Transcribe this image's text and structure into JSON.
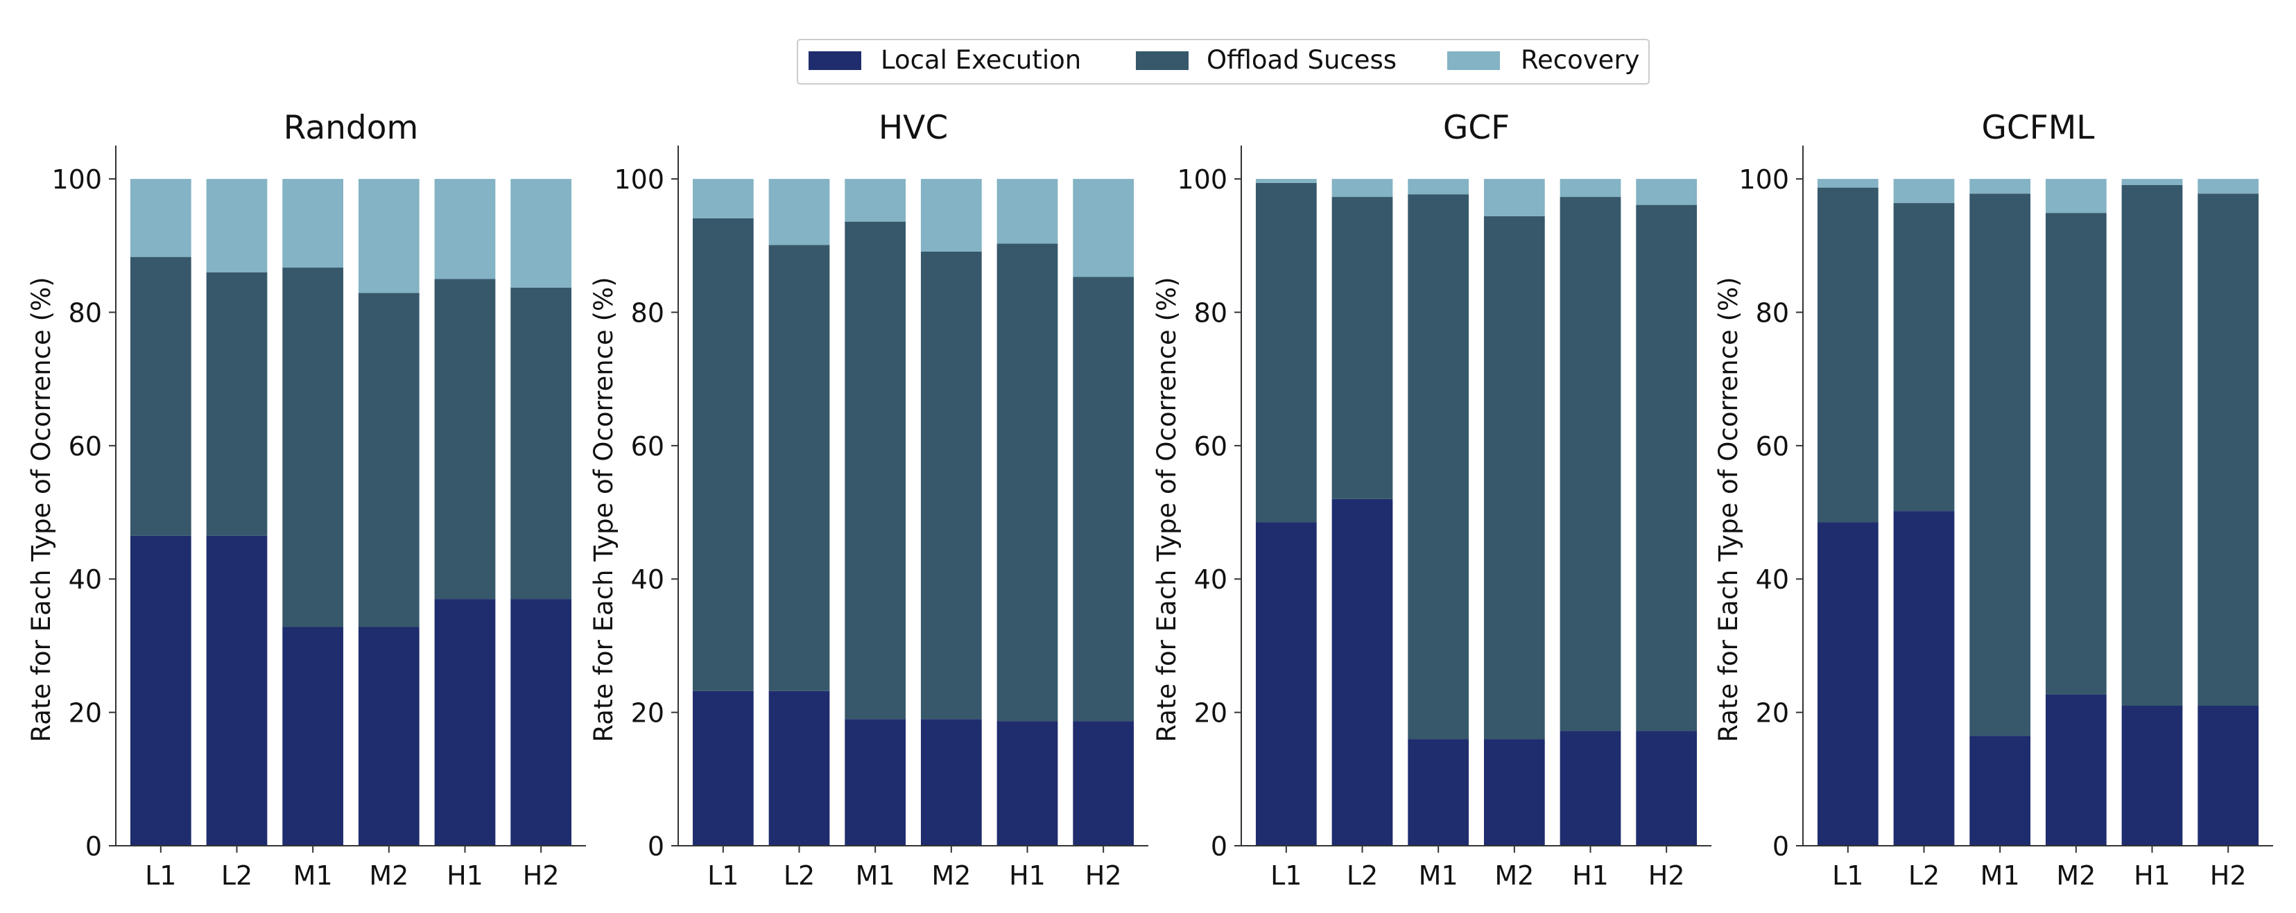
{
  "legend": {
    "placement": "top-center",
    "items": [
      {
        "label": "Local Execution",
        "color": "#1f2d6e"
      },
      {
        "label": "Offload Sucess",
        "color": "#37586b"
      },
      {
        "label": "Recovery",
        "color": "#83b3c4"
      }
    ]
  },
  "chart_data": [
    {
      "type": "bar",
      "stacked": true,
      "title": "Random",
      "ylabel": "Rate for Each Type of Ocorrence (%)",
      "ylim": [
        0,
        105
      ],
      "yticks": [
        0,
        20,
        40,
        60,
        80,
        100
      ],
      "categories": [
        "L1",
        "L2",
        "M1",
        "M2",
        "H1",
        "H2"
      ],
      "series": [
        {
          "name": "Local Execution",
          "values": [
            46.5,
            46.5,
            32.8,
            32.8,
            37.0,
            37.0
          ]
        },
        {
          "name": "Offload Sucess",
          "values": [
            41.8,
            39.5,
            53.9,
            50.1,
            48.0,
            46.7
          ]
        },
        {
          "name": "Recovery",
          "values": [
            11.7,
            14.0,
            13.3,
            17.1,
            15.0,
            16.3
          ]
        }
      ]
    },
    {
      "type": "bar",
      "stacked": true,
      "title": "HVC",
      "ylabel": "Rate for Each Type of Ocorrence (%)",
      "ylim": [
        0,
        105
      ],
      "yticks": [
        0,
        20,
        40,
        60,
        80,
        100
      ],
      "categories": [
        "L1",
        "L2",
        "M1",
        "M2",
        "H1",
        "H2"
      ],
      "series": [
        {
          "name": "Local Execution",
          "values": [
            23.2,
            23.2,
            19.0,
            19.0,
            18.7,
            18.7
          ]
        },
        {
          "name": "Offload Sucess",
          "values": [
            70.9,
            66.9,
            74.6,
            70.1,
            71.6,
            66.6
          ]
        },
        {
          "name": "Recovery",
          "values": [
            5.9,
            9.9,
            6.4,
            10.9,
            9.7,
            14.7
          ]
        }
      ]
    },
    {
      "type": "bar",
      "stacked": true,
      "title": "GCF",
      "ylabel": "Rate for Each Type of Ocorrence (%)",
      "ylim": [
        0,
        105
      ],
      "yticks": [
        0,
        20,
        40,
        60,
        80,
        100
      ],
      "categories": [
        "L1",
        "L2",
        "M1",
        "M2",
        "H1",
        "H2"
      ],
      "series": [
        {
          "name": "Local Execution",
          "values": [
            48.5,
            52.0,
            16.0,
            16.0,
            17.2,
            17.2
          ]
        },
        {
          "name": "Offload Sucess",
          "values": [
            50.9,
            45.3,
            81.7,
            78.4,
            80.1,
            78.9
          ]
        },
        {
          "name": "Recovery",
          "values": [
            0.6,
            2.7,
            2.3,
            5.6,
            2.7,
            3.9
          ]
        }
      ]
    },
    {
      "type": "bar",
      "stacked": true,
      "title": "GCFML",
      "ylabel": "Rate for Each Type of Ocorrence (%)",
      "ylim": [
        0,
        105
      ],
      "yticks": [
        0,
        20,
        40,
        60,
        80,
        100
      ],
      "categories": [
        "L1",
        "L2",
        "M1",
        "M2",
        "H1",
        "H2"
      ],
      "series": [
        {
          "name": "Local Execution",
          "values": [
            48.5,
            50.2,
            16.5,
            22.7,
            21.0,
            21.0
          ]
        },
        {
          "name": "Offload Sucess",
          "values": [
            50.2,
            46.2,
            81.3,
            72.2,
            78.1,
            76.8
          ]
        },
        {
          "name": "Recovery",
          "values": [
            1.3,
            3.6,
            2.2,
            5.1,
            0.9,
            2.2
          ]
        }
      ]
    }
  ]
}
